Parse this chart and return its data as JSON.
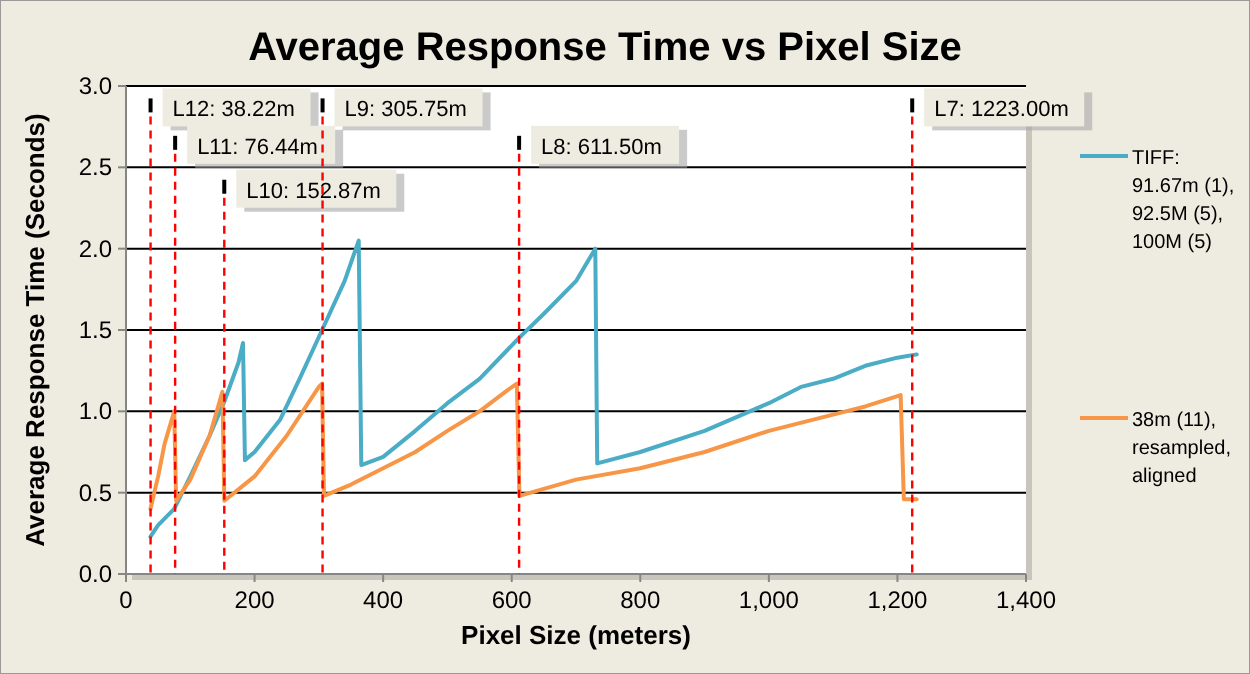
{
  "chart_data": {
    "type": "line",
    "title": "Average Response Time vs Pixel Size",
    "xlabel": "Pixel Size (meters)",
    "ylabel": "Average Response Time (Seconds)",
    "xlim": [
      0,
      1400
    ],
    "xticks": [
      0,
      200,
      400,
      600,
      800,
      {
        "value": 1000,
        "label": "1,000"
      },
      {
        "value": 1200,
        "label": "1,200"
      },
      {
        "value": 1400,
        "label": "1,400"
      }
    ],
    "ylim": [
      0,
      3
    ],
    "yticks": [
      {
        "value": 0,
        "label": "0.0"
      },
      0.5,
      {
        "value": 1,
        "label": "1.0"
      },
      1.5,
      {
        "value": 2,
        "label": "2.0"
      },
      2.5,
      {
        "value": 3,
        "label": "3.0"
      }
    ],
    "grid": "y",
    "legend": "right",
    "marker": "none",
    "line_style": "solid",
    "series": [
      {
        "name": "TIFF: 91.67m (1), 92.5M (5), 100M (5)",
        "color": "#4bacc6",
        "x": [
          38,
          50,
          75,
          100,
          130,
          152,
          175,
          182,
          185,
          200,
          240,
          270,
          305,
          340,
          362,
          366,
          400,
          450,
          500,
          550,
          611,
          650,
          700,
          730,
          733,
          800,
          900,
          1000,
          1050,
          1100,
          1150,
          1200,
          1230
        ],
        "values": [
          0.23,
          0.3,
          0.4,
          0.6,
          0.85,
          1.05,
          1.3,
          1.42,
          0.7,
          0.75,
          0.95,
          1.2,
          1.5,
          1.8,
          2.05,
          0.67,
          0.72,
          0.88,
          1.05,
          1.2,
          1.45,
          1.6,
          1.8,
          2.0,
          0.68,
          0.75,
          0.88,
          1.05,
          1.15,
          1.2,
          1.28,
          1.33,
          1.35
        ]
      },
      {
        "name": "38m (11), resampled, aligned",
        "color": "#f79646",
        "x": [
          38,
          50,
          60,
          75,
          78,
          100,
          130,
          150,
          153,
          200,
          250,
          300,
          305,
          308,
          350,
          400,
          450,
          500,
          550,
          590,
          608,
          612,
          700,
          800,
          900,
          1000,
          1100,
          1150,
          1205,
          1210,
          1230
        ],
        "values": [
          0.4,
          0.6,
          0.8,
          1.0,
          0.45,
          0.58,
          0.85,
          1.12,
          0.45,
          0.6,
          0.85,
          1.15,
          1.17,
          0.48,
          0.55,
          0.65,
          0.75,
          0.88,
          1.0,
          1.12,
          1.17,
          0.48,
          0.58,
          0.65,
          0.75,
          0.88,
          0.98,
          1.03,
          1.1,
          0.46,
          0.46
        ]
      }
    ],
    "ref_lines": [
      {
        "axis": "x",
        "value": 38.22,
        "label": "L12: 38.22m",
        "color": "#ff0000",
        "line_style": "dashed"
      },
      {
        "axis": "x",
        "value": 76.44,
        "label": "L11: 76.44m",
        "color": "#ff0000",
        "line_style": "dashed"
      },
      {
        "axis": "x",
        "value": 152.87,
        "label": "L10: 152.87m",
        "color": "#ff0000",
        "line_style": "dashed"
      },
      {
        "axis": "x",
        "value": 305.75,
        "label": "L9: 305.75m",
        "color": "#ff0000",
        "line_style": "dashed"
      },
      {
        "axis": "x",
        "value": 611.5,
        "label": "L8: 611.50m",
        "color": "#ff0000",
        "line_style": "dashed"
      },
      {
        "axis": "x",
        "value": 1223,
        "label": "L7: 1223.00m",
        "color": "#ff0000",
        "line_style": "dashed"
      }
    ]
  }
}
